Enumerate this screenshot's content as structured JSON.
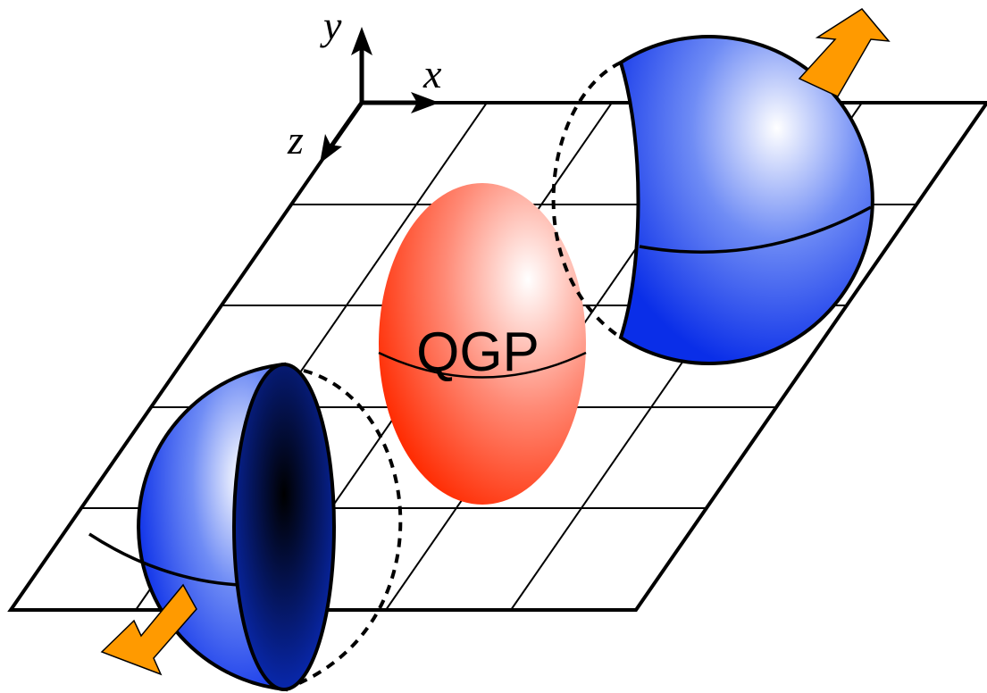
{
  "axes": {
    "y": "y",
    "x": "x",
    "z": "z"
  },
  "label": "QGP"
}
